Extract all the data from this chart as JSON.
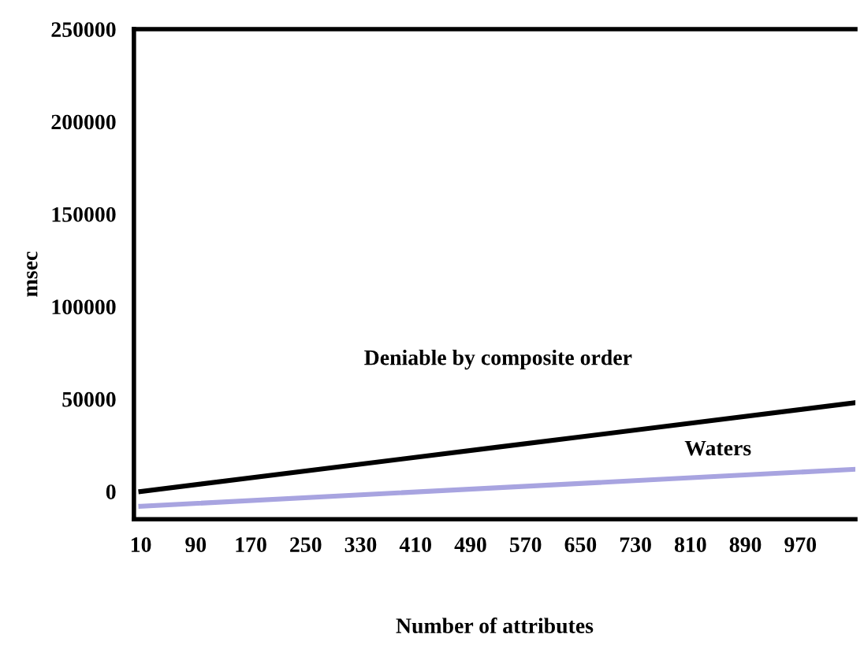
{
  "chart_data": {
    "type": "line",
    "xlabel": "Number of attributes",
    "ylabel": "msec",
    "xlim": [
      0,
      1050
    ],
    "xticks": [
      10,
      90,
      170,
      250,
      330,
      410,
      490,
      570,
      650,
      730,
      810,
      890,
      970
    ],
    "ylim": [
      -15000,
      250000
    ],
    "yticks": [
      0,
      50000,
      100000,
      150000,
      200000,
      250000
    ],
    "grid": false,
    "legend": false,
    "marker": "none",
    "line_style": "solid",
    "series": [
      {
        "name": "Deniable by composite order",
        "color": "#000000",
        "x": [
          10,
          530,
          1050
        ],
        "values": [
          0,
          24000,
          48000
        ]
      },
      {
        "name": "Waters",
        "color": "#a8a4e0",
        "x": [
          10,
          850,
          1050
        ],
        "values": [
          -8000,
          8200,
          12000
        ]
      }
    ]
  }
}
